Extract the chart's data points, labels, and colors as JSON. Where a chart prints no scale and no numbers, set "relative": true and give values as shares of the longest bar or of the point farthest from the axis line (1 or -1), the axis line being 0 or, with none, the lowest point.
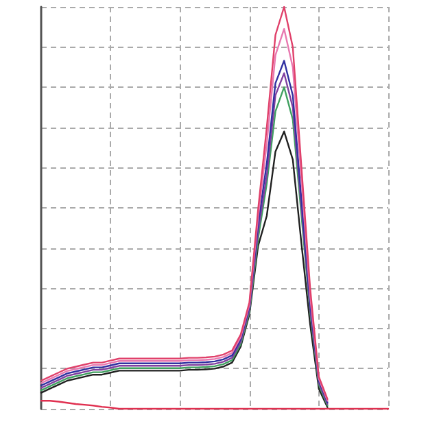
{
  "chart_data": {
    "type": "line",
    "relative": true,
    "grid": true,
    "marker": "none",
    "line_style": "solid",
    "categories": [
      null,
      null,
      null,
      null,
      null,
      null,
      null,
      null,
      null,
      null,
      null,
      null,
      null,
      null,
      null,
      null,
      null,
      null,
      null,
      null,
      null,
      null,
      null,
      null,
      null,
      null,
      null,
      null,
      null,
      null,
      null,
      null,
      null,
      null,
      null,
      null,
      null,
      null,
      null,
      null,
      null
    ],
    "series": [
      {
        "color": "#202020",
        "values": [
          0.04,
          0.05,
          0.06,
          0.07,
          0.075,
          0.08,
          0.085,
          0.085,
          0.09,
          0.095,
          0.095,
          0.095,
          0.095,
          0.095,
          0.095,
          0.095,
          0.095,
          0.097,
          0.097,
          0.098,
          0.1,
          0.105,
          0.115,
          0.155,
          0.235,
          0.405,
          0.48,
          0.64,
          0.69,
          0.62,
          0.41,
          0.21,
          0.05,
          0.004,
          null,
          null,
          null,
          null,
          null,
          null,
          null
        ]
      },
      {
        "color": "#40a060",
        "values": [
          0.046,
          0.056,
          0.066,
          0.076,
          0.081,
          0.086,
          0.091,
          0.091,
          0.096,
          0.101,
          0.101,
          0.101,
          0.101,
          0.101,
          0.101,
          0.101,
          0.101,
          0.103,
          0.103,
          0.104,
          0.106,
          0.111,
          0.121,
          0.161,
          0.241,
          0.423,
          0.56,
          0.74,
          0.8,
          0.72,
          0.48,
          0.24,
          0.06,
          0.008,
          null,
          null,
          null,
          null,
          null,
          null,
          null
        ]
      },
      {
        "color": "#8040a0",
        "values": [
          0.052,
          0.062,
          0.072,
          0.082,
          0.087,
          0.092,
          0.097,
          0.097,
          0.102,
          0.107,
          0.107,
          0.107,
          0.107,
          0.107,
          0.107,
          0.107,
          0.107,
          0.109,
          0.109,
          0.11,
          0.112,
          0.117,
          0.127,
          0.167,
          0.247,
          0.441,
          0.58,
          0.78,
          0.835,
          0.75,
          0.5,
          0.25,
          0.065,
          0.012,
          null,
          null,
          null,
          null,
          null,
          null,
          null
        ]
      },
      {
        "color": "#3030a0",
        "values": [
          0.058,
          0.068,
          0.078,
          0.088,
          0.093,
          0.098,
          0.103,
          0.103,
          0.108,
          0.113,
          0.113,
          0.113,
          0.113,
          0.113,
          0.113,
          0.113,
          0.113,
          0.115,
          0.115,
          0.116,
          0.118,
          0.123,
          0.133,
          0.173,
          0.253,
          0.459,
          0.61,
          0.81,
          0.866,
          0.78,
          0.52,
          0.26,
          0.07,
          0.016,
          null,
          null,
          null,
          null,
          null,
          null,
          null
        ]
      },
      {
        "color": "#e878b0",
        "values": [
          0.064,
          0.074,
          0.084,
          0.094,
          0.099,
          0.104,
          0.109,
          0.109,
          0.114,
          0.119,
          0.119,
          0.119,
          0.119,
          0.119,
          0.119,
          0.119,
          0.119,
          0.121,
          0.121,
          0.122,
          0.124,
          0.129,
          0.139,
          0.179,
          0.259,
          0.477,
          0.66,
          0.88,
          0.945,
          0.85,
          0.57,
          0.28,
          0.075,
          0.02,
          null,
          null,
          null,
          null,
          null,
          null,
          null
        ]
      },
      {
        "color": "#e0406a",
        "values": [
          0.07,
          0.08,
          0.09,
          0.1,
          0.105,
          0.11,
          0.115,
          0.115,
          0.12,
          0.125,
          0.125,
          0.125,
          0.125,
          0.125,
          0.125,
          0.125,
          0.125,
          0.127,
          0.127,
          0.128,
          0.13,
          0.135,
          0.145,
          0.185,
          0.265,
          0.495,
          0.7,
          0.93,
          1,
          0.9,
          0.6,
          0.3,
          0.08,
          0.024,
          null,
          null,
          null,
          null,
          null,
          null,
          null
        ]
      },
      {
        "color": "#e03050",
        "values": [
          0.02,
          0.02,
          0.018,
          0.015,
          0.012,
          0.01,
          0.008,
          0.005,
          0.003,
          0,
          0,
          0,
          0,
          0,
          0,
          0,
          0,
          0,
          0,
          0,
          0,
          0,
          0,
          0,
          0,
          0,
          0,
          0,
          0,
          0,
          0,
          0,
          0,
          0,
          0,
          0,
          0,
          0,
          0,
          0,
          0
        ]
      }
    ]
  }
}
